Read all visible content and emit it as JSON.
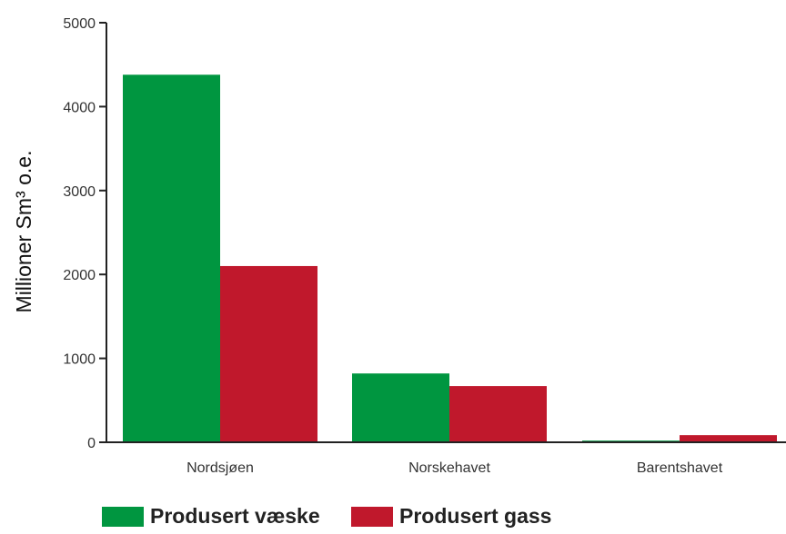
{
  "chart_data": {
    "type": "bar",
    "categories": [
      "Nordsjøen",
      "Norskehavet",
      "Barentshavet"
    ],
    "series": [
      {
        "name": "Produsert væske",
        "color": "#009640",
        "values": [
          4380,
          820,
          20
        ]
      },
      {
        "name": "Produsert gass",
        "color": "#C0182C",
        "values": [
          2100,
          670,
          85
        ]
      }
    ],
    "ylabel": "Millioner Sm³ o.e.",
    "ylim": [
      0,
      5000
    ],
    "yticks": [
      "0",
      "1000",
      "2000",
      "3000",
      "4000",
      "5000"
    ],
    "grid": false,
    "legend": "bottom-left"
  }
}
